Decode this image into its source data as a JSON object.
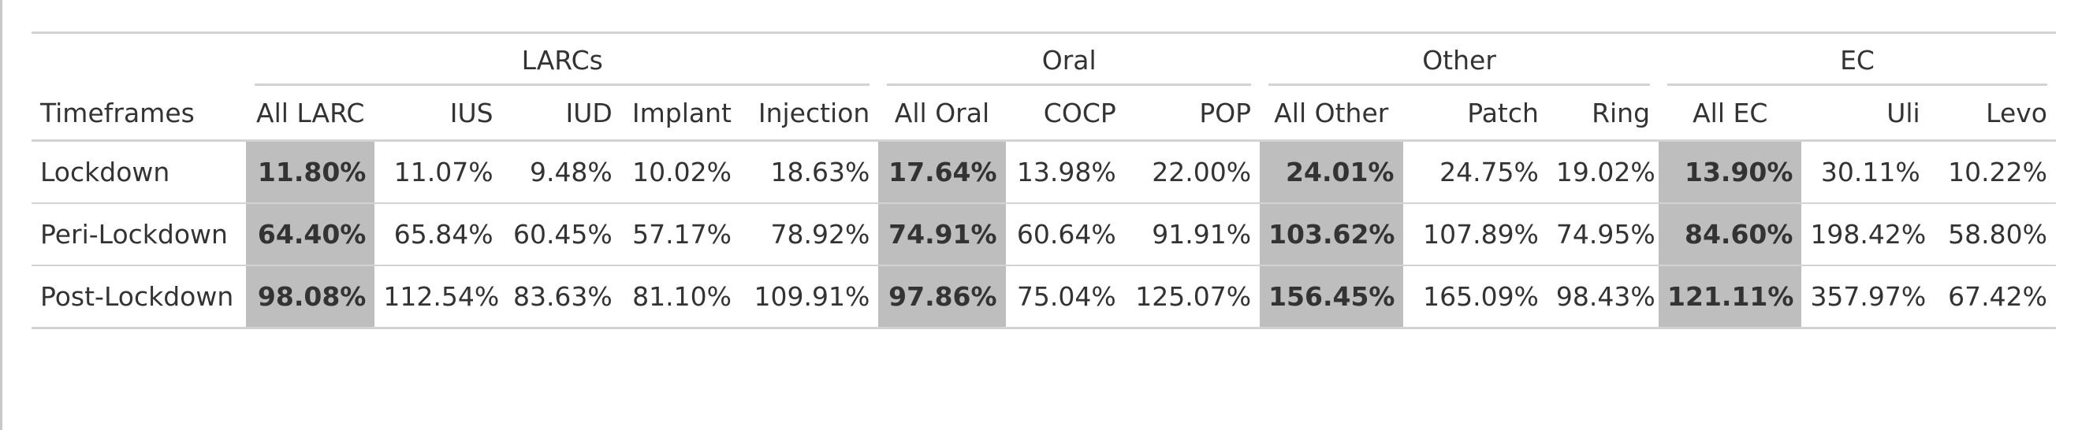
{
  "spanners": [
    "LARCs",
    "Oral",
    "Other",
    "EC"
  ],
  "columns": {
    "stub": "Timeframes",
    "larc": [
      "All LARC",
      "IUS",
      "IUD",
      "Implant",
      "Injection"
    ],
    "oral": [
      "All Oral",
      "COCP",
      "POP"
    ],
    "other": [
      "All Other",
      "Patch",
      "Ring"
    ],
    "ec": [
      "All EC",
      "Uli",
      "Levo"
    ]
  },
  "rows": [
    {
      "timeframe": "Lockdown",
      "values": [
        "11.80%",
        "11.07%",
        "9.48%",
        "10.02%",
        "18.63%",
        "17.64%",
        "13.98%",
        "22.00%",
        "24.01%",
        "24.75%",
        "19.02%",
        "13.90%",
        "30.11%",
        "10.22%"
      ]
    },
    {
      "timeframe": "Peri-Lockdown",
      "values": [
        "64.40%",
        "65.84%",
        "60.45%",
        "57.17%",
        "78.92%",
        "74.91%",
        "60.64%",
        "91.91%",
        "103.62%",
        "107.89%",
        "74.95%",
        "84.60%",
        "198.42%",
        "58.80%"
      ]
    },
    {
      "timeframe": "Post-Lockdown",
      "values": [
        "98.08%",
        "112.54%",
        "83.63%",
        "81.10%",
        "109.91%",
        "97.86%",
        "75.04%",
        "125.07%",
        "156.45%",
        "165.09%",
        "98.43%",
        "121.11%",
        "357.97%",
        "67.42%"
      ]
    }
  ],
  "highlight_color": "#bebebe",
  "border_color": "#d3d3d3"
}
